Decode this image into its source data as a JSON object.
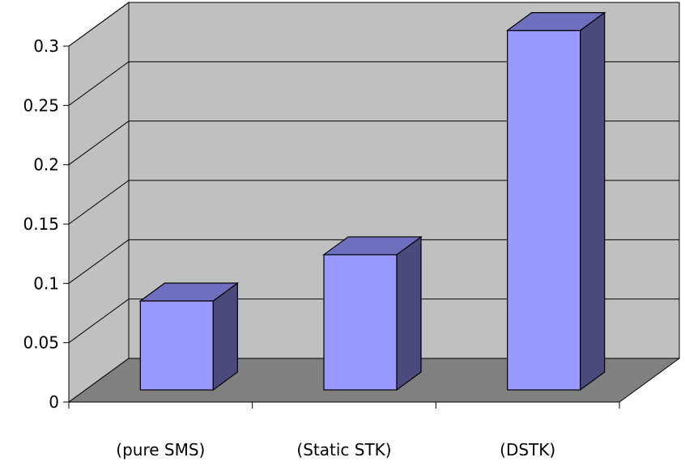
{
  "chart_data": {
    "type": "bar",
    "style": "3d-column",
    "categories": [
      "(pure SMS)",
      "(Static STK)",
      "(DSTK)"
    ],
    "series": [
      {
        "values": [
          0.075,
          0.114,
          0.303
        ]
      }
    ],
    "ylim": [
      0,
      0.3
    ],
    "yticks": [
      "0",
      "0.05",
      "0.1",
      "0.15",
      "0.2",
      "0.25",
      "0.3"
    ],
    "ytick_values": [
      0,
      0.05,
      0.1,
      0.15,
      0.2,
      0.25,
      0.3
    ],
    "title": "",
    "xlabel": "",
    "ylabel": "",
    "grid": true,
    "legend": "none",
    "colors": {
      "bar_front": "#9999ff",
      "bar_side": "#4a4a7c",
      "bar_top": "#6f6fbf",
      "back_wall": "#c0c0c0",
      "side_wall": "#c0c0c0",
      "floor": "#808080",
      "gridline": "#000000"
    }
  }
}
